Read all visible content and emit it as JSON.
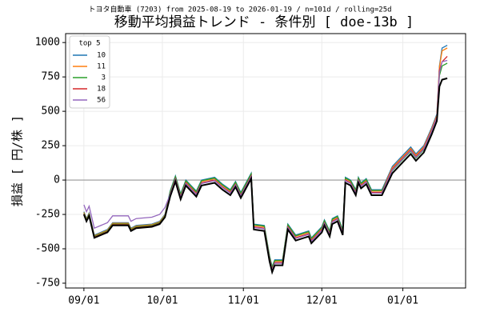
{
  "chart_data": {
    "type": "line",
    "subtitle": "トヨタ自動車 (7203) from 2025-08-19 to 2026-01-19 / n=101d / rolling=25d",
    "title": "移動平均損益トレンド - 条件別 [ doe-13b ]",
    "y_label": "損益 [ 円/株 ]",
    "legend_title": "top 5",
    "legend_position": "upper left",
    "grid": true,
    "hline": 0,
    "xlim": [
      -7,
      146
    ],
    "xticks": [
      {
        "value": 0,
        "label": "09/01"
      },
      {
        "value": 30,
        "label": "10/01"
      },
      {
        "value": 61,
        "label": "11/01"
      },
      {
        "value": 91,
        "label": "12/01"
      },
      {
        "value": 122,
        "label": "01/01"
      }
    ],
    "ylim": [
      -785,
      1065
    ],
    "yticks": [
      -750,
      -500,
      -250,
      0,
      250,
      500,
      750,
      1000
    ],
    "x": [
      0,
      1,
      2,
      4,
      9,
      11,
      17,
      18,
      20,
      26,
      29,
      31,
      33,
      35,
      37,
      39,
      43,
      45,
      50,
      53,
      56,
      58,
      60,
      64,
      65,
      69,
      71,
      72,
      73,
      76,
      78,
      81,
      86,
      87,
      91,
      92,
      94,
      95,
      97,
      99,
      100,
      102,
      104,
      105,
      106,
      108,
      110,
      114,
      118,
      123,
      125,
      127,
      130,
      133,
      135,
      136,
      137,
      139
    ],
    "series": [
      {
        "name": "10",
        "color": "#1f77b4",
        "values": [
          -230,
          -280,
          -240,
          -400,
          -360,
          -310,
          -310,
          -350,
          -330,
          -320,
          -300,
          -250,
          -80,
          30,
          -100,
          0,
          -80,
          0,
          20,
          -30,
          -70,
          -10,
          -90,
          50,
          -320,
          -330,
          -550,
          -630,
          -580,
          -580,
          -320,
          -400,
          -370,
          -420,
          -340,
          -290,
          -370,
          -280,
          -260,
          -360,
          20,
          0,
          -70,
          20,
          -20,
          10,
          -70,
          -70,
          100,
          200,
          240,
          190,
          250,
          380,
          480,
          830,
          960,
          980
        ]
      },
      {
        "name": "11",
        "color": "#ff7f0e",
        "values": [
          -235,
          -285,
          -245,
          -405,
          -365,
          -315,
          -315,
          -355,
          -335,
          -325,
          -305,
          -255,
          -90,
          20,
          -110,
          -10,
          -90,
          -10,
          10,
          -40,
          -80,
          -20,
          -100,
          40,
          -330,
          -340,
          -560,
          -640,
          -590,
          -590,
          -330,
          -410,
          -380,
          -430,
          -350,
          -300,
          -380,
          -290,
          -270,
          -370,
          10,
          -10,
          -80,
          10,
          -30,
          0,
          -80,
          -80,
          90,
          190,
          230,
          180,
          240,
          370,
          470,
          820,
          940,
          960
        ]
      },
      {
        "name": "3",
        "color": "#2ca02c",
        "values": [
          -240,
          -290,
          -250,
          -410,
          -370,
          -320,
          -320,
          -360,
          -340,
          -330,
          -310,
          -260,
          -85,
          25,
          -105,
          -5,
          -85,
          -5,
          15,
          -35,
          -75,
          -15,
          -95,
          45,
          -325,
          -335,
          -555,
          -635,
          -585,
          -585,
          -325,
          -405,
          -375,
          -425,
          -345,
          -295,
          -375,
          -285,
          -265,
          -365,
          15,
          -5,
          -75,
          15,
          -25,
          5,
          -75,
          -75,
          70,
          170,
          210,
          160,
          220,
          350,
          450,
          760,
          830,
          850
        ]
      },
      {
        "name": "18",
        "color": "#d62728",
        "values": [
          -245,
          -295,
          -255,
          -415,
          -375,
          -325,
          -325,
          -365,
          -345,
          -335,
          -315,
          -265,
          -100,
          10,
          -120,
          -20,
          -100,
          -20,
          0,
          -50,
          -90,
          -30,
          -110,
          30,
          -340,
          -350,
          -570,
          -650,
          -600,
          -600,
          -340,
          -420,
          -390,
          -440,
          -360,
          -310,
          -390,
          -300,
          -280,
          -380,
          0,
          -20,
          -90,
          0,
          -40,
          -10,
          -90,
          -90,
          80,
          180,
          220,
          170,
          230,
          360,
          460,
          800,
          860,
          900
        ]
      },
      {
        "name": "56",
        "color": "#9467bd",
        "values": [
          -180,
          -230,
          -190,
          -350,
          -310,
          -260,
          -260,
          -300,
          -280,
          -270,
          -250,
          -200,
          -105,
          5,
          -125,
          -25,
          -105,
          -25,
          -5,
          -55,
          -95,
          -35,
          -115,
          25,
          -345,
          -355,
          -575,
          -655,
          -605,
          -605,
          -345,
          -425,
          -395,
          -445,
          -365,
          -315,
          -395,
          -305,
          -285,
          -385,
          -5,
          -25,
          -95,
          -5,
          -45,
          -15,
          -95,
          -95,
          75,
          175,
          215,
          165,
          225,
          355,
          455,
          780,
          860,
          870
        ]
      },
      {
        "color": "#000000",
        "values": [
          -250,
          -300,
          -260,
          -420,
          -380,
          -330,
          -330,
          -370,
          -350,
          -340,
          -320,
          -270,
          -120,
          -10,
          -140,
          -40,
          -120,
          -40,
          -20,
          -70,
          -110,
          -50,
          -130,
          10,
          -360,
          -370,
          -590,
          -670,
          -620,
          -620,
          -360,
          -440,
          -410,
          -460,
          -380,
          -330,
          -410,
          -320,
          -300,
          -400,
          -20,
          -40,
          -110,
          -20,
          -60,
          -30,
          -110,
          -110,
          50,
          150,
          190,
          140,
          200,
          330,
          430,
          680,
          730,
          740
        ]
      }
    ]
  }
}
